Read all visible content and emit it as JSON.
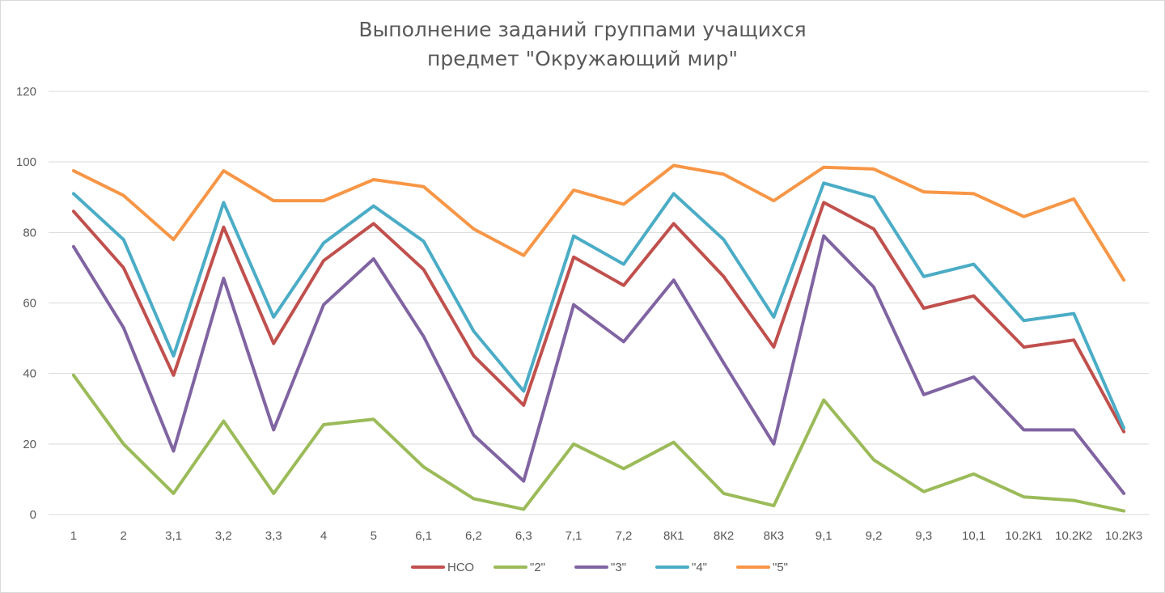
{
  "chart_data": {
    "type": "line",
    "title": "Выполнение заданий группами учащихся",
    "subtitle": "предмет \"Окружающий мир\"",
    "xlabel": "",
    "ylabel": "",
    "ylim": [
      0,
      120
    ],
    "yticks": [
      "0",
      "20",
      "40",
      "60",
      "80",
      "100",
      "120"
    ],
    "grid": true,
    "legend_position": "bottom",
    "categories": [
      "1",
      "2",
      "3,1",
      "3,2",
      "3,3",
      "4",
      "5",
      "6,1",
      "6,2",
      "6,3",
      "7,1",
      "7,2",
      "8К1",
      "8К2",
      "8К3",
      "9,1",
      "9,2",
      "9,3",
      "10,1",
      "10.2К1",
      "10.2К2",
      "10.2К3"
    ],
    "series": [
      {
        "name": "НСО",
        "color": "#c0504d",
        "values": [
          86,
          70,
          39.5,
          81.5,
          48.5,
          72,
          82.5,
          69.5,
          45,
          31,
          73,
          65,
          82.5,
          67.5,
          47.5,
          88.5,
          81,
          58.5,
          62,
          47.5,
          49.5,
          23.5
        ]
      },
      {
        "name": "\"2\"",
        "color": "#9bbb59",
        "values": [
          39.5,
          20,
          6,
          26.5,
          6,
          25.5,
          27,
          13.5,
          4.5,
          1.5,
          20,
          13,
          20.5,
          6,
          2.5,
          32.5,
          15.5,
          6.5,
          11.5,
          5,
          4,
          1
        ]
      },
      {
        "name": "\"3\"",
        "color": "#8064a2",
        "values": [
          76,
          53,
          18,
          67,
          24,
          59.5,
          72.5,
          50.5,
          22.5,
          9.5,
          59.5,
          49,
          66.5,
          43,
          20,
          79,
          64.5,
          34,
          39,
          24,
          24,
          6
        ]
      },
      {
        "name": "\"4\"",
        "color": "#4bacc6",
        "values": [
          91,
          78,
          45,
          88.5,
          56,
          77,
          87.5,
          77.5,
          52,
          35,
          79,
          71,
          91,
          78,
          56,
          94,
          90,
          67.5,
          71,
          55,
          57,
          24.5
        ]
      },
      {
        "name": "\"5\"",
        "color": "#f79646",
        "values": [
          97.5,
          90.5,
          78,
          97.5,
          89,
          89,
          95,
          93,
          81,
          73.5,
          92,
          88,
          99,
          96.5,
          89,
          98.5,
          98,
          91.5,
          91,
          84.5,
          89.5,
          66.5
        ]
      }
    ]
  }
}
